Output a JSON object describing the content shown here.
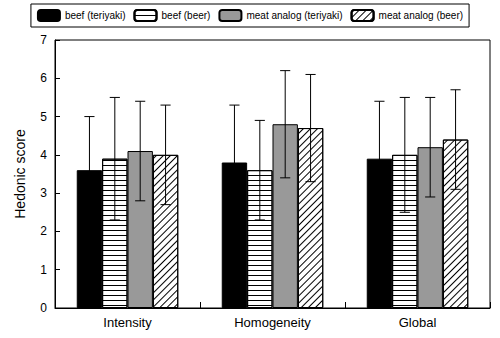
{
  "chart_data": {
    "type": "bar",
    "categories": [
      "Intensity",
      "Homogeneity",
      "Global"
    ],
    "series": [
      {
        "name": "beef (teriyaki)",
        "color": "#000000",
        "values": [
          3.6,
          3.8,
          3.9
        ],
        "errors": [
          1.4,
          1.5,
          1.5
        ]
      },
      {
        "name": "beef (beer)",
        "color": "#ffffff",
        "values": [
          3.9,
          3.6,
          4.0
        ],
        "errors": [
          1.6,
          1.3,
          1.5
        ]
      },
      {
        "name": "meat analog (teriyaki)",
        "color": "#999999",
        "values": [
          4.1,
          4.8,
          4.2
        ],
        "errors": [
          1.3,
          1.4,
          1.3
        ]
      },
      {
        "name": "meat analog (beer)",
        "color": "#ffffff",
        "values": [
          4.0,
          4.7,
          4.4
        ],
        "errors": [
          1.3,
          1.4,
          1.3
        ]
      }
    ],
    "y_label": "Hedonic score",
    "ylim": [
      0,
      7
    ],
    "yticks": [
      0,
      1,
      2,
      3,
      4,
      5,
      6,
      7
    ],
    "grid": false,
    "legend": "top"
  }
}
